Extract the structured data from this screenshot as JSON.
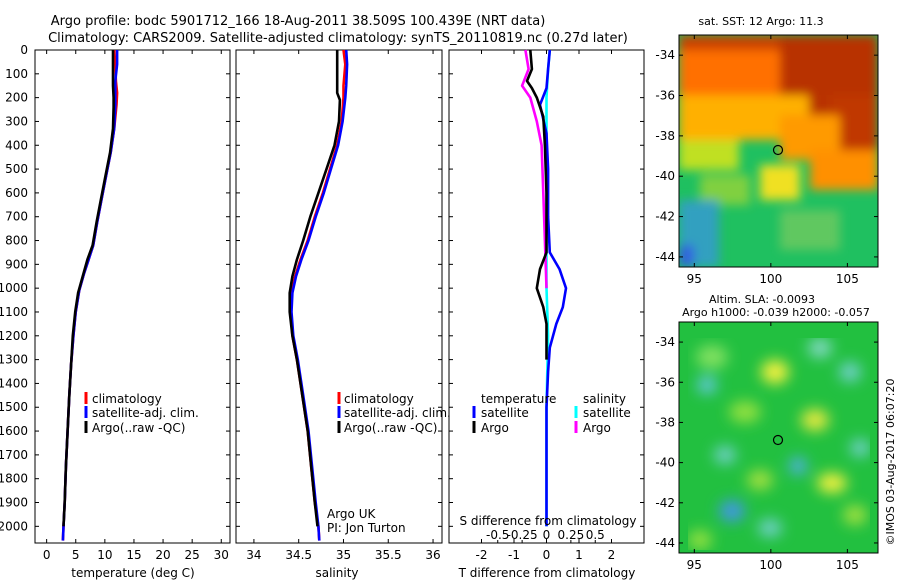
{
  "header": {
    "line1": "Argo profile: bodc 5901712_166 18-Aug-2011 38.509S 100.439E (NRT data)",
    "line2": "Climatology: CARS2009. Satellite-adjusted climatology: synTS_20110819.nc (0.27d later)"
  },
  "credit": {
    "line1": "Argo UK",
    "line2": "PI: Jon Turton"
  },
  "stamp": "©IMOS 03-Aug-2017 06:07:20",
  "colors": {
    "climatology": "#ff0000",
    "satellite": "#0000ff",
    "argo": "#000000",
    "sal_satellite": "#00ffff",
    "sal_argo": "#ff00ff"
  },
  "chart_data": [
    {
      "type": "line",
      "xlabel": "temperature (deg C)",
      "xlim": [
        -2,
        31.5
      ],
      "xticks": [
        0,
        5,
        10,
        15,
        20,
        25,
        30
      ],
      "ylim": [
        0,
        2070
      ],
      "yticks": [
        0,
        100,
        200,
        300,
        400,
        500,
        600,
        700,
        800,
        900,
        1000,
        1100,
        1200,
        1300,
        1400,
        1500,
        1600,
        1700,
        1800,
        1900,
        2000
      ],
      "legend": [
        "climatology",
        "satellite-adj. clim.",
        "Argo(..raw -QC)"
      ],
      "series": [
        {
          "name": "climatology",
          "color": "#ff0000",
          "points": [
            [
              11.6,
              0
            ],
            [
              11.8,
              60
            ],
            [
              11.9,
              130
            ],
            [
              12.1,
              180
            ],
            [
              12.0,
              230
            ],
            [
              11.6,
              330
            ],
            [
              11.0,
              430
            ],
            [
              10.2,
              530
            ],
            [
              9.4,
              630
            ],
            [
              8.7,
              720
            ],
            [
              8.0,
              820
            ],
            [
              7.2,
              880
            ],
            [
              6.4,
              940
            ],
            [
              5.6,
              1010
            ],
            [
              5.0,
              1100
            ],
            [
              4.6,
              1200
            ],
            [
              4.2,
              1320
            ],
            [
              3.9,
              1450
            ],
            [
              3.6,
              1600
            ],
            [
              3.3,
              1750
            ],
            [
              3.1,
              1900
            ],
            [
              2.9,
              2000
            ],
            [
              2.8,
              2060
            ]
          ]
        },
        {
          "name": "satellite-adj. clim.",
          "color": "#0000ff",
          "points": [
            [
              12.1,
              0
            ],
            [
              12.1,
              60
            ],
            [
              11.8,
              130
            ],
            [
              11.8,
              180
            ],
            [
              11.8,
              230
            ],
            [
              11.6,
              330
            ],
            [
              11.0,
              430
            ],
            [
              10.2,
              530
            ],
            [
              9.4,
              630
            ],
            [
              8.7,
              720
            ],
            [
              8.0,
              820
            ],
            [
              7.2,
              880
            ],
            [
              6.4,
              940
            ],
            [
              5.6,
              1010
            ],
            [
              5.0,
              1100
            ],
            [
              4.6,
              1200
            ],
            [
              4.2,
              1320
            ],
            [
              3.9,
              1450
            ],
            [
              3.6,
              1600
            ],
            [
              3.3,
              1750
            ],
            [
              3.1,
              1900
            ],
            [
              2.9,
              2000
            ],
            [
              2.8,
              2060
            ]
          ]
        },
        {
          "name": "Argo(..raw -QC)",
          "color": "#000000",
          "points": [
            [
              11.4,
              0
            ],
            [
              11.4,
              80
            ],
            [
              11.4,
              150
            ],
            [
              11.5,
              200
            ],
            [
              11.5,
              240
            ],
            [
              11.4,
              330
            ],
            [
              10.9,
              430
            ],
            [
              10.1,
              530
            ],
            [
              9.3,
              630
            ],
            [
              8.6,
              720
            ],
            [
              7.9,
              820
            ],
            [
              7.0,
              880
            ],
            [
              6.2,
              950
            ],
            [
              5.4,
              1020
            ],
            [
              4.9,
              1100
            ],
            [
              4.5,
              1200
            ],
            [
              4.2,
              1320
            ],
            [
              3.9,
              1450
            ],
            [
              3.6,
              1600
            ],
            [
              3.3,
              1750
            ],
            [
              3.1,
              1900
            ],
            [
              2.9,
              2000
            ]
          ]
        }
      ]
    },
    {
      "type": "line",
      "xlabel": "salinity",
      "xlim": [
        33.8,
        36.1
      ],
      "xticks": [
        34,
        34.5,
        35,
        35.5,
        36
      ],
      "ylim": [
        0,
        2070
      ],
      "legend": [
        "climatology",
        "satellite-adj. clim.",
        "Argo(..raw -QC)"
      ],
      "series": [
        {
          "name": "climatology",
          "color": "#ff0000",
          "points": [
            [
              35.0,
              0
            ],
            [
              35.02,
              60
            ],
            [
              35.0,
              150
            ],
            [
              35.0,
              200
            ],
            [
              34.98,
              300
            ],
            [
              34.93,
              400
            ],
            [
              34.85,
              500
            ],
            [
              34.77,
              600
            ],
            [
              34.68,
              700
            ],
            [
              34.6,
              800
            ],
            [
              34.52,
              880
            ],
            [
              34.46,
              950
            ],
            [
              34.42,
              1020
            ],
            [
              34.41,
              1100
            ],
            [
              34.43,
              1200
            ],
            [
              34.48,
              1300
            ],
            [
              34.54,
              1450
            ],
            [
              34.6,
              1600
            ],
            [
              34.64,
              1750
            ],
            [
              34.68,
              1900
            ],
            [
              34.72,
              2000
            ],
            [
              34.73,
              2060
            ]
          ]
        },
        {
          "name": "satellite-adj. clim.",
          "color": "#0000ff",
          "points": [
            [
              35.03,
              0
            ],
            [
              35.04,
              60
            ],
            [
              35.03,
              150
            ],
            [
              35.02,
              200
            ],
            [
              34.99,
              300
            ],
            [
              34.94,
              400
            ],
            [
              34.86,
              500
            ],
            [
              34.78,
              600
            ],
            [
              34.69,
              700
            ],
            [
              34.61,
              800
            ],
            [
              34.53,
              880
            ],
            [
              34.47,
              950
            ],
            [
              34.43,
              1020
            ],
            [
              34.42,
              1100
            ],
            [
              34.44,
              1200
            ],
            [
              34.49,
              1300
            ],
            [
              34.55,
              1450
            ],
            [
              34.61,
              1600
            ],
            [
              34.65,
              1750
            ],
            [
              34.69,
              1900
            ],
            [
              34.72,
              2000
            ],
            [
              34.73,
              2060
            ]
          ]
        },
        {
          "name": "Argo(..raw -QC)",
          "color": "#000000",
          "points": [
            [
              34.93,
              0
            ],
            [
              34.93,
              120
            ],
            [
              34.93,
              180
            ],
            [
              34.96,
              210
            ],
            [
              34.95,
              300
            ],
            [
              34.9,
              400
            ],
            [
              34.81,
              500
            ],
            [
              34.72,
              600
            ],
            [
              34.63,
              700
            ],
            [
              34.55,
              800
            ],
            [
              34.48,
              880
            ],
            [
              34.43,
              950
            ],
            [
              34.4,
              1020
            ],
            [
              34.4,
              1100
            ],
            [
              34.43,
              1200
            ],
            [
              34.48,
              1300
            ],
            [
              34.54,
              1450
            ],
            [
              34.6,
              1600
            ],
            [
              34.64,
              1750
            ],
            [
              34.68,
              1900
            ],
            [
              34.71,
              2000
            ]
          ]
        }
      ]
    },
    {
      "type": "line",
      "xlabel": "T difference from climatology",
      "xlabel_top": "S difference from climatology",
      "xlim": [
        -3.0,
        3.0
      ],
      "xticks": [
        -2,
        -1,
        0,
        1,
        2
      ],
      "xticks_top": [
        "-0.5",
        "-0.25",
        "0",
        "0.25",
        "0.5"
      ],
      "ylim": [
        0,
        2070
      ],
      "legend_temperature": {
        "title": "temperature",
        "items": [
          "satellite",
          "Argo"
        ]
      },
      "legend_salinity": {
        "title": "salinity",
        "items": [
          "satellite",
          "Argo"
        ]
      },
      "series": [
        {
          "name": "satellite",
          "group": "temperature",
          "color": "#0000ff",
          "points": [
            [
              0.1,
              0
            ],
            [
              0.05,
              80
            ],
            [
              0.0,
              160
            ],
            [
              -0.2,
              230
            ],
            [
              0.0,
              350
            ],
            [
              0.05,
              500
            ],
            [
              0.05,
              700
            ],
            [
              0.1,
              850
            ],
            [
              0.4,
              920
            ],
            [
              0.6,
              1000
            ],
            [
              0.5,
              1080
            ],
            [
              0.3,
              1150
            ],
            [
              0.1,
              1250
            ],
            [
              0.05,
              1350
            ],
            [
              0.0,
              1500
            ],
            [
              0.0,
              2000
            ]
          ]
        },
        {
          "name": "Argo",
          "group": "temperature",
          "color": "#000000",
          "points": [
            [
              -0.5,
              0
            ],
            [
              -0.45,
              80
            ],
            [
              -0.6,
              130
            ],
            [
              -0.45,
              160
            ],
            [
              -0.3,
              200
            ],
            [
              -0.1,
              280
            ],
            [
              -0.05,
              400
            ],
            [
              0.0,
              600
            ],
            [
              0.0,
              850
            ],
            [
              -0.2,
              920
            ],
            [
              -0.3,
              1000
            ],
            [
              -0.1,
              1080
            ],
            [
              0.0,
              1150
            ],
            [
              0.0,
              1300
            ]
          ]
        },
        {
          "name": "satellite",
          "group": "salinity",
          "color": "#00ffff",
          "points": [
            [
              0.1,
              0
            ],
            [
              0.05,
              80
            ],
            [
              0.0,
              200
            ],
            [
              0.0,
              400
            ],
            [
              0.0,
              800
            ],
            [
              0.0,
              1000
            ],
            [
              0.05,
              1200
            ],
            [
              0.0,
              1500
            ],
            [
              0.0,
              2000
            ]
          ]
        },
        {
          "name": "Argo",
          "group": "salinity",
          "color": "#ff00ff",
          "points": [
            [
              -0.65,
              0
            ],
            [
              -0.55,
              80
            ],
            [
              -0.75,
              150
            ],
            [
              -0.5,
              200
            ],
            [
              -0.3,
              300
            ],
            [
              -0.15,
              400
            ],
            [
              -0.1,
              600
            ],
            [
              -0.05,
              800
            ],
            [
              0.0,
              1000
            ]
          ]
        }
      ]
    },
    {
      "type": "heatmap",
      "title": "sat. SST: 12 Argo: 11.3",
      "xlim": [
        94,
        107
      ],
      "xticks": [
        95,
        100,
        105
      ],
      "ylim": [
        -44.5,
        -33
      ],
      "yticks": [
        -34,
        -36,
        -38,
        -40,
        -42,
        -44
      ],
      "marker": [
        100.44,
        -38.51
      ]
    },
    {
      "type": "heatmap",
      "title": "Altim. SLA: -0.0093",
      "subtitle": "Argo h1000: -0.039 h2000: -0.057",
      "xlim": [
        94,
        107
      ],
      "xticks": [
        95,
        100,
        105
      ],
      "ylim": [
        -44.5,
        -33
      ],
      "yticks": [
        -34,
        -36,
        -38,
        -40,
        -42,
        -44
      ],
      "marker": [
        100.44,
        -38.51
      ]
    }
  ]
}
